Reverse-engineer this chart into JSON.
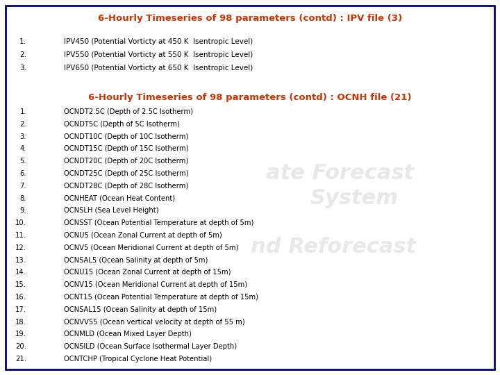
{
  "title1": "6-Hourly Timeseries of 98 parameters (contd) : IPV file (3)",
  "title2": "6-Hourly Timeseries of 98 parameters (contd) : OCNH file (21)",
  "ipv_items": [
    "IPV450 (Potential Vorticty at 450 K  Isentropic Level)",
    "IPV550 (Potential Vorticty at 550 K  Isentropic Level)",
    "IPV650 (Potential Vorticty at 650 K  Isentropic Level)"
  ],
  "ocnh_items": [
    "OCNDT2.5C (Depth of 2.5C Isotherm)",
    "OCNDT5C (Depth of 5C Isotherm)",
    "OCNDT10C (Depth of 10C Isotherm)",
    "OCNDT15C (Depth of 15C Isotherm)",
    "OCNDT20C (Depth of 20C Isotherm)",
    "OCNDT25C (Depth of 25C Isotherm)",
    "OCNDT28C (Depth of 28C Isotherm)",
    "OCNHEAT (Ocean Heat Content)",
    "OCNSLH (Sea Level Height)",
    "OCNSST (Ocean Potential Temperature at depth of 5m)",
    "OCNU5 (Ocean Zonal Current at depth of 5m)",
    "OCNV5 (Ocean Meridional Current at depth of 5m)",
    "OCNSAL5 (Ocean Salinity at depth of 5m)",
    "OCNU15 (Ocean Zonal Current at depth of 15m)",
    "OCNV15 (Ocean Meridional Current at depth of 15m)",
    "OCNT15 (Ocean Potential Temperature at depth of 15m)",
    "OCNSAL15 (Ocean Salinity at depth of 15m)",
    "OCNVV55 (Ocean vertical velocity at depth of 55 m)",
    "OCNMLD (Ocean Mixed Layer Depth)",
    "OCNSILD (Ocean Surface Isothermal Layer Depth)",
    "OCNTCHP (Tropical Cyclone Heat Potential)"
  ],
  "title_color": "#cc3300",
  "text_color": "#000000",
  "number_color": "#000000",
  "bg_color": "#ffffff",
  "border_color": "#000080",
  "title_fontsize": 9.5,
  "item_fontsize": 7.2,
  "ipv_fontsize": 7.5
}
